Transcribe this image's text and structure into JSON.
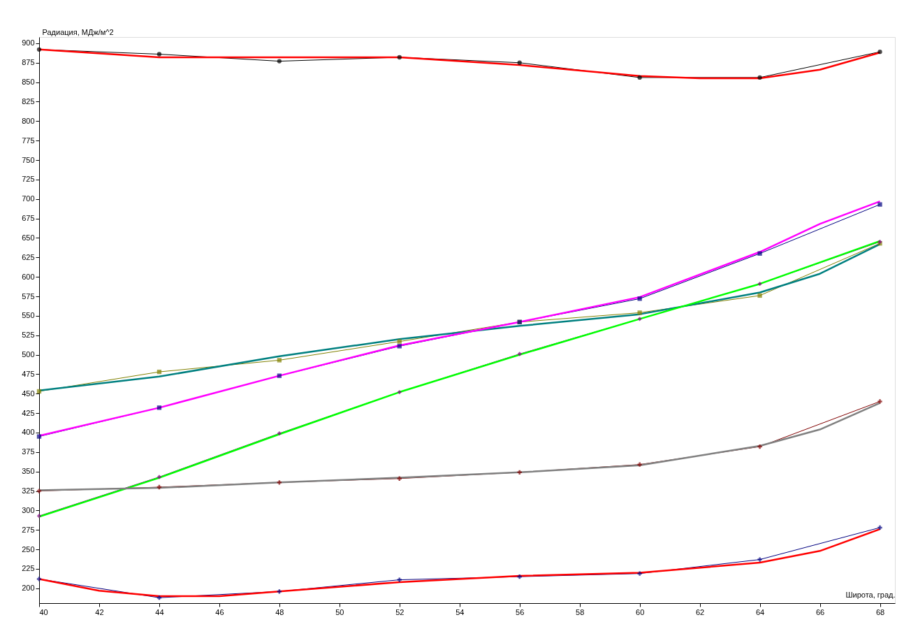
{
  "chart_data": {
    "type": "line",
    "xlabel": "Широта, град.",
    "ylabel": "Радиация, МДж/м^2",
    "xlim": [
      40,
      68.5
    ],
    "ylim": [
      181,
      908
    ],
    "xticks": [
      40,
      42,
      44,
      46,
      48,
      50,
      52,
      54,
      56,
      58,
      60,
      62,
      64,
      66,
      68
    ],
    "yticks": [
      200,
      225,
      250,
      275,
      300,
      325,
      350,
      375,
      400,
      425,
      450,
      475,
      500,
      525,
      550,
      575,
      600,
      625,
      650,
      675,
      700,
      725,
      750,
      775,
      800,
      825,
      850,
      875,
      900
    ],
    "grid": false,
    "legend": false,
    "line_style": "solid",
    "series": [
      {
        "color": "#000000",
        "marker": "circle",
        "x": [
          40,
          44,
          48,
          52,
          56,
          60,
          64,
          68
        ],
        "values": [
          892,
          886,
          877,
          882,
          875,
          856,
          856,
          889
        ]
      },
      {
        "color": "#ff0000",
        "marker": "none",
        "x": [
          40,
          44,
          48,
          52,
          56,
          60,
          62,
          64,
          66,
          68
        ],
        "values": [
          892,
          882,
          882,
          882,
          872,
          858,
          855,
          855,
          866,
          888
        ]
      },
      {
        "color": "#808000",
        "marker": "square",
        "x": [
          40,
          44,
          48,
          52,
          56,
          60,
          64,
          68
        ],
        "values": [
          453,
          478,
          493,
          517,
          542,
          554,
          576,
          643
        ]
      },
      {
        "color": "#008080",
        "marker": "none",
        "x": [
          40,
          44,
          48,
          52,
          56,
          60,
          64,
          66,
          68
        ],
        "values": [
          454,
          472,
          498,
          520,
          537,
          552,
          580,
          604,
          642
        ]
      },
      {
        "color": "#000080",
        "marker": "square",
        "x": [
          40,
          44,
          48,
          52,
          56,
          60,
          64,
          68
        ],
        "values": [
          395,
          432,
          473,
          511,
          542,
          572,
          630,
          693
        ]
      },
      {
        "color": "#ff00ff",
        "marker": "none",
        "x": [
          40,
          44,
          48,
          52,
          56,
          60,
          64,
          66,
          68
        ],
        "values": [
          396,
          432,
          473,
          512,
          542,
          574,
          632,
          668,
          697
        ]
      },
      {
        "color": "#800080",
        "marker": "diamond",
        "x": [
          40,
          44,
          48,
          52,
          56,
          60,
          64,
          68
        ],
        "values": [
          293,
          343,
          399,
          452,
          501,
          546,
          591,
          645
        ]
      },
      {
        "color": "#00ff00",
        "marker": "none",
        "x": [
          40,
          44,
          48,
          52,
          56,
          60,
          64,
          68
        ],
        "values": [
          292,
          342,
          398,
          452,
          500,
          546,
          591,
          646
        ]
      },
      {
        "color": "#800000",
        "marker": "cross",
        "x": [
          40,
          44,
          48,
          52,
          56,
          60,
          64,
          68
        ],
        "values": [
          325,
          330,
          336,
          341,
          349,
          359,
          382,
          440
        ]
      },
      {
        "color": "#808080",
        "marker": "none",
        "x": [
          40,
          44,
          48,
          52,
          56,
          60,
          64,
          66,
          68
        ],
        "values": [
          326,
          329,
          336,
          342,
          349,
          358,
          383,
          404,
          438
        ]
      },
      {
        "color": "#000080",
        "marker": "cross",
        "x": [
          40,
          44,
          48,
          52,
          56,
          60,
          64,
          68
        ],
        "values": [
          212,
          188,
          196,
          211,
          215,
          219,
          237,
          278
        ]
      },
      {
        "color": "#ff0000",
        "marker": "none",
        "x": [
          40,
          42,
          44,
          46,
          48,
          52,
          56,
          60,
          64,
          66,
          68
        ],
        "values": [
          212,
          197,
          190,
          190,
          196,
          208,
          216,
          220,
          233,
          248,
          276
        ]
      }
    ]
  }
}
